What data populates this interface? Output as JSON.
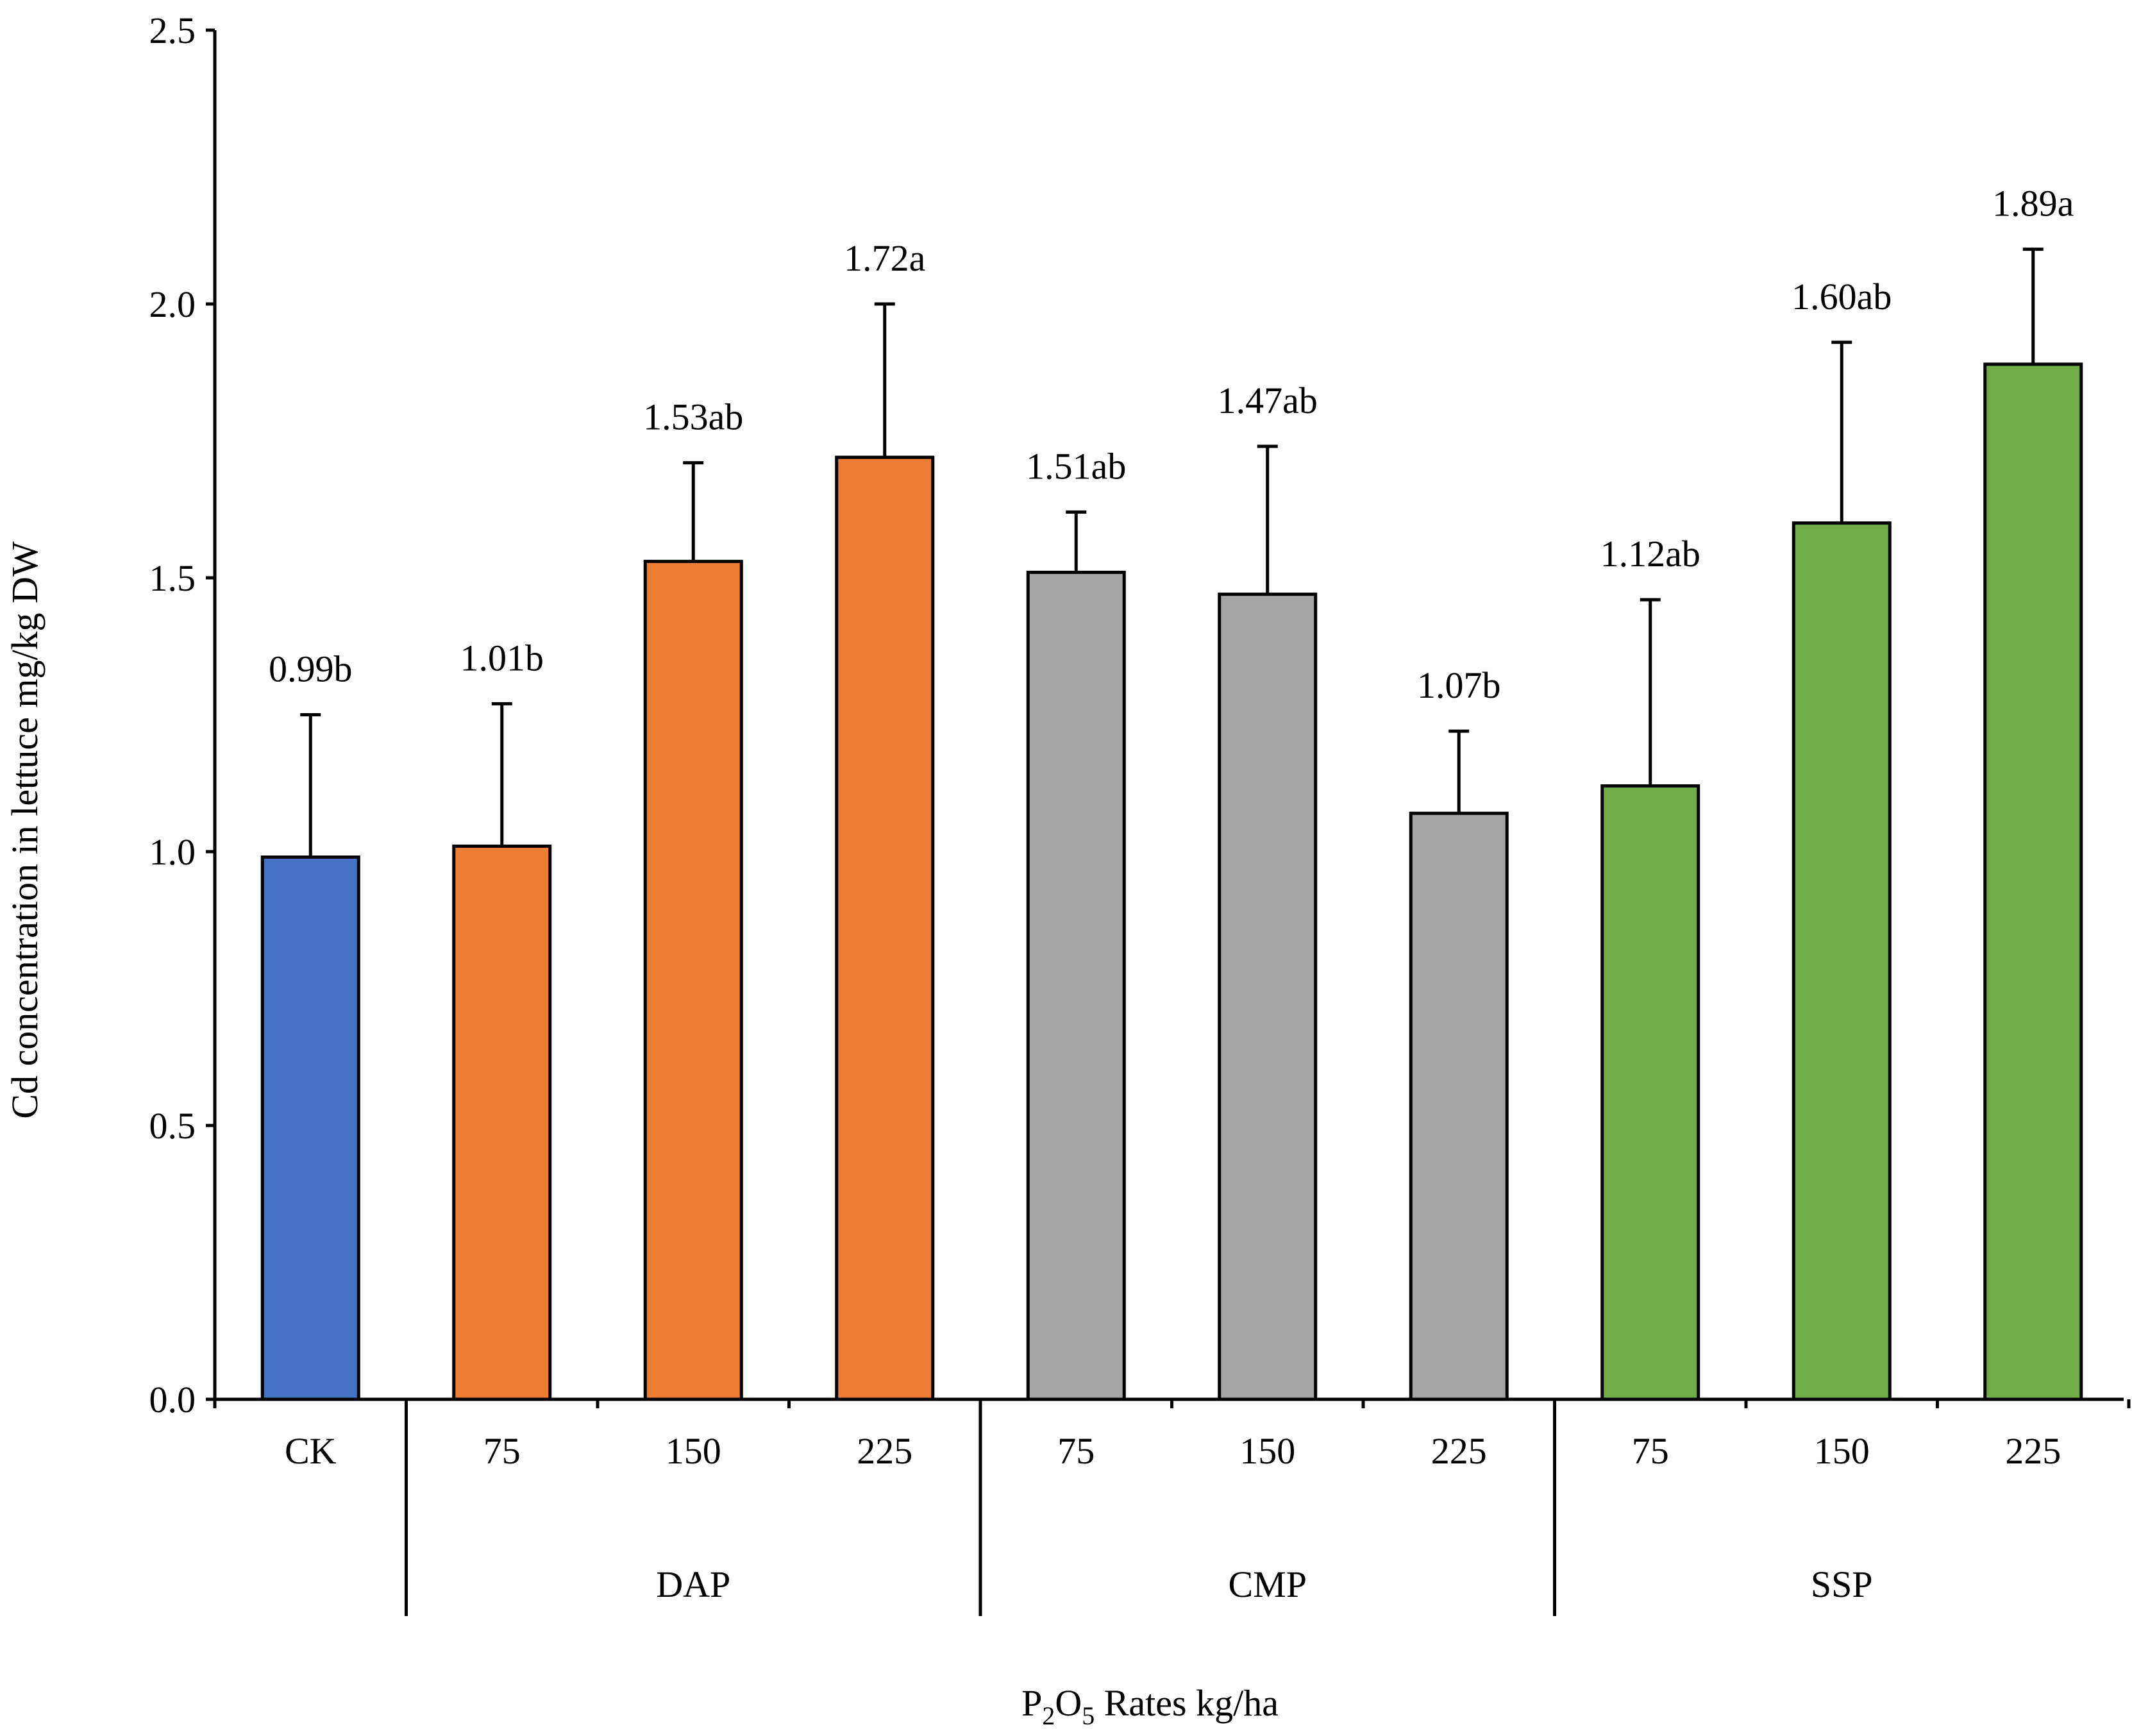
{
  "chart_data": {
    "type": "bar",
    "title": "",
    "ylabel": "Cd concentration in lettuce mg/kg  DW",
    "xlabel": {
      "pre": "P",
      "sub1": "2",
      "mid": "O",
      "sub2": "5",
      "post": " Rates  kg/ha"
    },
    "ylim": [
      0,
      2.5
    ],
    "yticks": [
      {
        "value": 0.0,
        "label": "0.0"
      },
      {
        "value": 0.5,
        "label": "0.5"
      },
      {
        "value": 1.0,
        "label": "1.0"
      },
      {
        "value": 1.5,
        "label": "1.5"
      },
      {
        "value": 2.0,
        "label": "2.0"
      },
      {
        "value": 2.5,
        "label": "2.5"
      }
    ],
    "groups": [
      {
        "name": "",
        "start": 0,
        "end": 0
      },
      {
        "name": "DAP",
        "start": 1,
        "end": 3
      },
      {
        "name": "CMP",
        "start": 4,
        "end": 6
      },
      {
        "name": "SSP",
        "start": 7,
        "end": 9
      }
    ],
    "bars": [
      {
        "category": "CK",
        "value": 0.99,
        "error": 0.26,
        "label": "0.99b",
        "color": "#4472C4"
      },
      {
        "category": "75",
        "value": 1.01,
        "error": 0.26,
        "label": "1.01b",
        "color": "#ED7D31"
      },
      {
        "category": "150",
        "value": 1.53,
        "error": 0.18,
        "label": "1.53ab",
        "color": "#ED7D31"
      },
      {
        "category": "225",
        "value": 1.72,
        "error": 0.28,
        "label": "1.72a",
        "color": "#ED7D31"
      },
      {
        "category": "75",
        "value": 1.51,
        "error": 0.11,
        "label": "1.51ab",
        "color": "#A5A5A5"
      },
      {
        "category": "150",
        "value": 1.47,
        "error": 0.27,
        "label": "1.47ab",
        "color": "#A5A5A5"
      },
      {
        "category": "225",
        "value": 1.07,
        "error": 0.15,
        "label": "1.07b",
        "color": "#A5A5A5"
      },
      {
        "category": "75",
        "value": 1.12,
        "error": 0.34,
        "label": "1.12ab",
        "color": "#70AD47"
      },
      {
        "category": "150",
        "value": 1.6,
        "error": 0.33,
        "label": "1.60ab",
        "color": "#70AD47"
      },
      {
        "category": "225",
        "value": 1.89,
        "error": 0.21,
        "label": "1.89a",
        "color": "#70AD47"
      }
    ]
  }
}
